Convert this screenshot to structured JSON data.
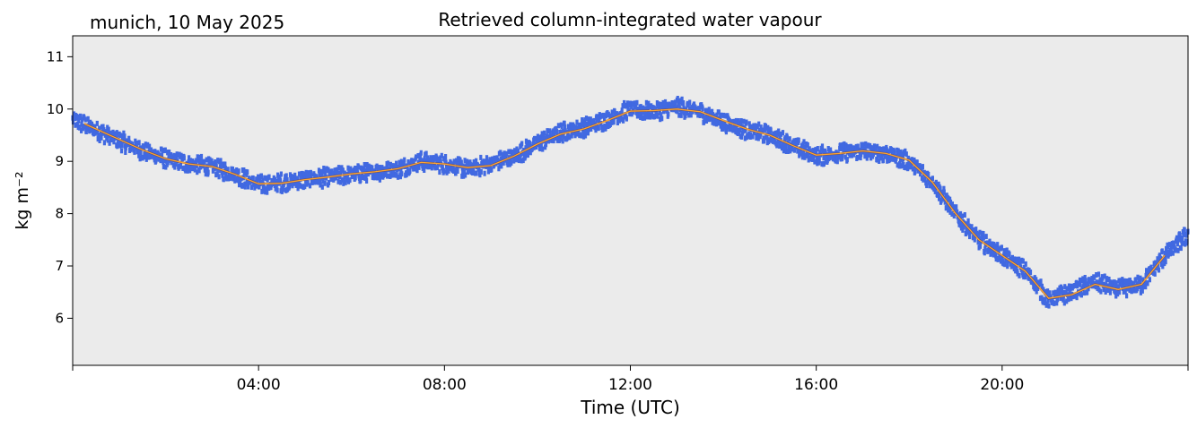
{
  "header": {
    "location_date": "munich, 10 May 2025"
  },
  "chart_data": {
    "type": "line",
    "title": "Retrieved column-integrated water vapour",
    "xlabel": "Time (UTC)",
    "ylabel": "kg m⁻²",
    "xlim": [
      0,
      24
    ],
    "ylim": [
      5.1,
      11.4
    ],
    "x_ticks": [
      0,
      4,
      8,
      12,
      16,
      20,
      24
    ],
    "x_tick_labels": [
      "",
      "04:00",
      "08:00",
      "12:00",
      "16:00",
      "20:00",
      ""
    ],
    "y_ticks": [
      6,
      7,
      8,
      9,
      10,
      11
    ],
    "y_tick_labels": [
      "6",
      "7",
      "8",
      "9",
      "10",
      "11"
    ],
    "grid": false,
    "background": "#ebebeb",
    "series": [
      {
        "style": "scatter",
        "color": "#4169e1",
        "x": [
          0.0,
          0.5,
          1.0,
          1.5,
          2.0,
          2.5,
          3.0,
          3.5,
          4.0,
          4.5,
          5.0,
          5.5,
          6.0,
          6.5,
          7.0,
          7.5,
          8.0,
          8.5,
          9.0,
          9.5,
          10.0,
          10.5,
          11.0,
          11.5,
          12.0,
          12.5,
          13.0,
          13.5,
          14.0,
          14.5,
          15.0,
          15.5,
          16.0,
          16.5,
          17.0,
          17.5,
          18.0,
          18.5,
          19.0,
          19.5,
          20.0,
          20.5,
          21.0,
          21.5,
          22.0,
          22.5,
          23.0,
          23.5,
          24.0
        ],
        "y": [
          9.8,
          9.6,
          9.4,
          9.2,
          9.05,
          8.95,
          8.9,
          8.75,
          8.55,
          8.6,
          8.65,
          8.7,
          8.75,
          8.8,
          8.85,
          9.0,
          8.95,
          8.85,
          8.95,
          9.1,
          9.35,
          9.55,
          9.65,
          9.8,
          10.0,
          9.95,
          10.05,
          9.95,
          9.75,
          9.6,
          9.5,
          9.3,
          9.1,
          9.15,
          9.2,
          9.15,
          9.0,
          8.6,
          8.0,
          7.5,
          7.2,
          6.9,
          6.35,
          6.5,
          6.7,
          6.55,
          6.65,
          7.2,
          7.6
        ],
        "spread": 0.18
      },
      {
        "style": "line",
        "color": "#ffa530",
        "x": [
          0.25,
          0.5,
          1.0,
          1.5,
          2.0,
          2.5,
          3.0,
          3.5,
          4.0,
          4.5,
          5.0,
          5.5,
          6.0,
          6.5,
          7.0,
          7.5,
          8.0,
          8.5,
          9.0,
          9.5,
          10.0,
          10.5,
          11.0,
          11.5,
          12.0,
          12.5,
          13.0,
          13.5,
          14.0,
          14.5,
          15.0,
          15.5,
          16.0,
          16.5,
          17.0,
          17.5,
          18.0,
          18.5,
          19.0,
          19.5,
          20.0,
          20.5,
          21.0,
          21.5,
          22.0,
          22.5,
          23.0,
          23.5
        ],
        "y": [
          9.72,
          9.62,
          9.42,
          9.22,
          9.05,
          8.95,
          8.9,
          8.75,
          8.57,
          8.58,
          8.65,
          8.7,
          8.76,
          8.8,
          8.86,
          8.98,
          8.95,
          8.88,
          8.92,
          9.1,
          9.33,
          9.52,
          9.62,
          9.78,
          9.96,
          9.97,
          10.0,
          9.95,
          9.78,
          9.62,
          9.5,
          9.3,
          9.12,
          9.15,
          9.2,
          9.15,
          9.02,
          8.6,
          8.0,
          7.5,
          7.2,
          6.9,
          6.38,
          6.45,
          6.65,
          6.55,
          6.65,
          7.2
        ]
      }
    ]
  }
}
